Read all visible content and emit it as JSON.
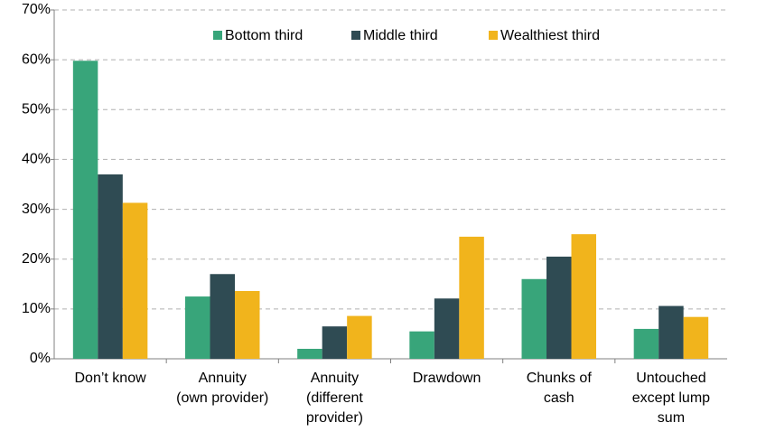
{
  "chart_data": {
    "type": "bar",
    "categories": [
      "Don’t know",
      "Annuity\n(own provider)",
      "Annuity\n(different\nprovider)",
      "Drawdown",
      "Chunks of\ncash",
      "Untouched\nexcept lump\nsum"
    ],
    "series": [
      {
        "name": "Bottom third",
        "color": "#38a57a",
        "values": [
          59.8,
          12.5,
          2,
          5.5,
          16,
          6
        ]
      },
      {
        "name": "Middle third",
        "color": "#2f4b53",
        "values": [
          37,
          17,
          6.5,
          12.1,
          20.5,
          10.6
        ]
      },
      {
        "name": "Wealthiest third",
        "color": "#f1b41c",
        "values": [
          31.3,
          13.6,
          8.6,
          24.5,
          25,
          8.4
        ]
      }
    ],
    "ylim": [
      0,
      70
    ],
    "yticks": [
      {
        "value": 0,
        "label": "0%"
      },
      {
        "value": 10,
        "label": "10%"
      },
      {
        "value": 20,
        "label": "20%"
      },
      {
        "value": 30,
        "label": "30%"
      },
      {
        "value": 40,
        "label": "40%"
      },
      {
        "value": 50,
        "label": "50%"
      },
      {
        "value": 60,
        "label": "60%"
      },
      {
        "value": 70,
        "label": "70%"
      }
    ],
    "grid": true,
    "legend": "top"
  }
}
